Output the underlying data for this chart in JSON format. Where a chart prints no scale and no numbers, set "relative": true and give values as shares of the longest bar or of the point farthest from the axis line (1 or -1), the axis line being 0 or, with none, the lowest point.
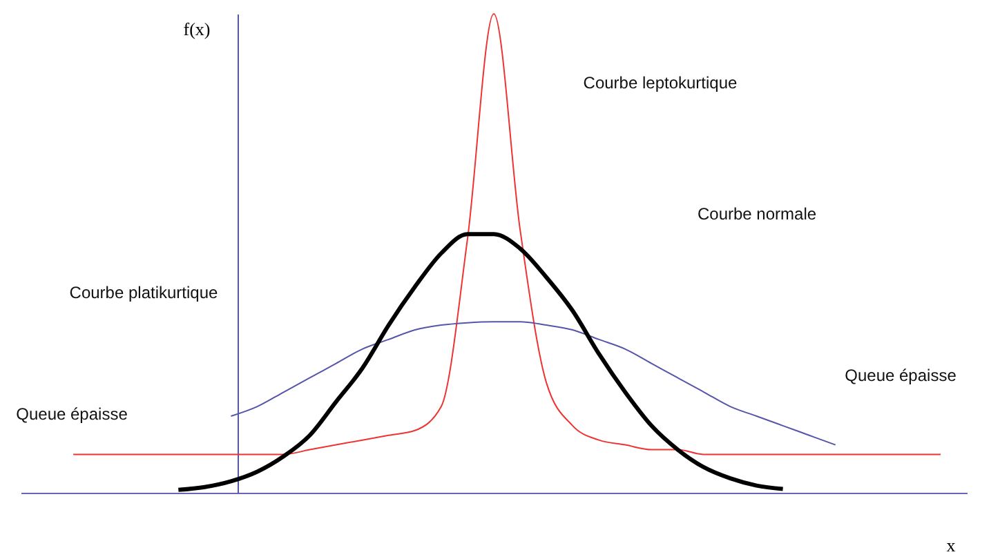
{
  "chart_data": {
    "type": "line",
    "relative": true,
    "xlabel": "x",
    "ylabel": "f(x)",
    "grid": false,
    "categories": [
      null,
      null,
      null,
      null,
      null,
      null,
      null,
      null,
      null,
      null,
      null,
      null,
      null,
      null,
      null,
      null,
      null,
      null,
      null,
      null,
      null,
      null,
      null,
      null,
      null,
      null,
      null,
      null,
      null,
      null,
      null,
      null,
      null,
      null,
      null
    ],
    "series": [
      {
        "color": "#ee3333",
        "values": [
          null,
          0.08,
          0.08,
          0.08,
          0.08,
          0.08,
          0.08,
          0.08,
          0.08,
          0.08,
          0.09,
          0.1,
          0.11,
          0.12,
          0.13,
          0.18,
          0.53,
          1,
          0.55,
          0.23,
          0.14,
          0.11,
          0.1,
          0.09,
          0.09,
          0.08,
          0.08,
          0.08,
          0.08,
          0.08,
          0.08,
          0.08,
          0.08,
          0.08,
          0.08
        ]
      },
      {
        "color": "#5555aa",
        "values": [
          null,
          null,
          null,
          null,
          null,
          null,
          null,
          0.16,
          0.18,
          0.21,
          0.24,
          0.27,
          0.3,
          0.32,
          0.34,
          0.35,
          0.355,
          0.357,
          0.357,
          0.35,
          0.34,
          0.32,
          0.3,
          0.27,
          0.24,
          0.21,
          0.18,
          0.16,
          0.14,
          0.12,
          0.1,
          null,
          null,
          null,
          null
        ]
      },
      {
        "color": "#000000",
        "values": [
          null,
          null,
          null,
          null,
          null,
          0.006,
          0.012,
          0.024,
          0.044,
          0.076,
          0.12,
          0.19,
          0.26,
          0.35,
          0.43,
          0.5,
          0.54,
          0.54,
          0.51,
          0.45,
          0.38,
          0.29,
          0.21,
          0.14,
          0.09,
          0.053,
          0.03,
          0.015,
          0.008,
          null,
          null,
          null,
          null,
          null,
          null
        ]
      }
    ],
    "annotations": [
      "Courbe leptokurtique",
      "Courbe normale",
      "Courbe platikurtique",
      "Queue épaisse",
      "Queue épaisse"
    ]
  }
}
